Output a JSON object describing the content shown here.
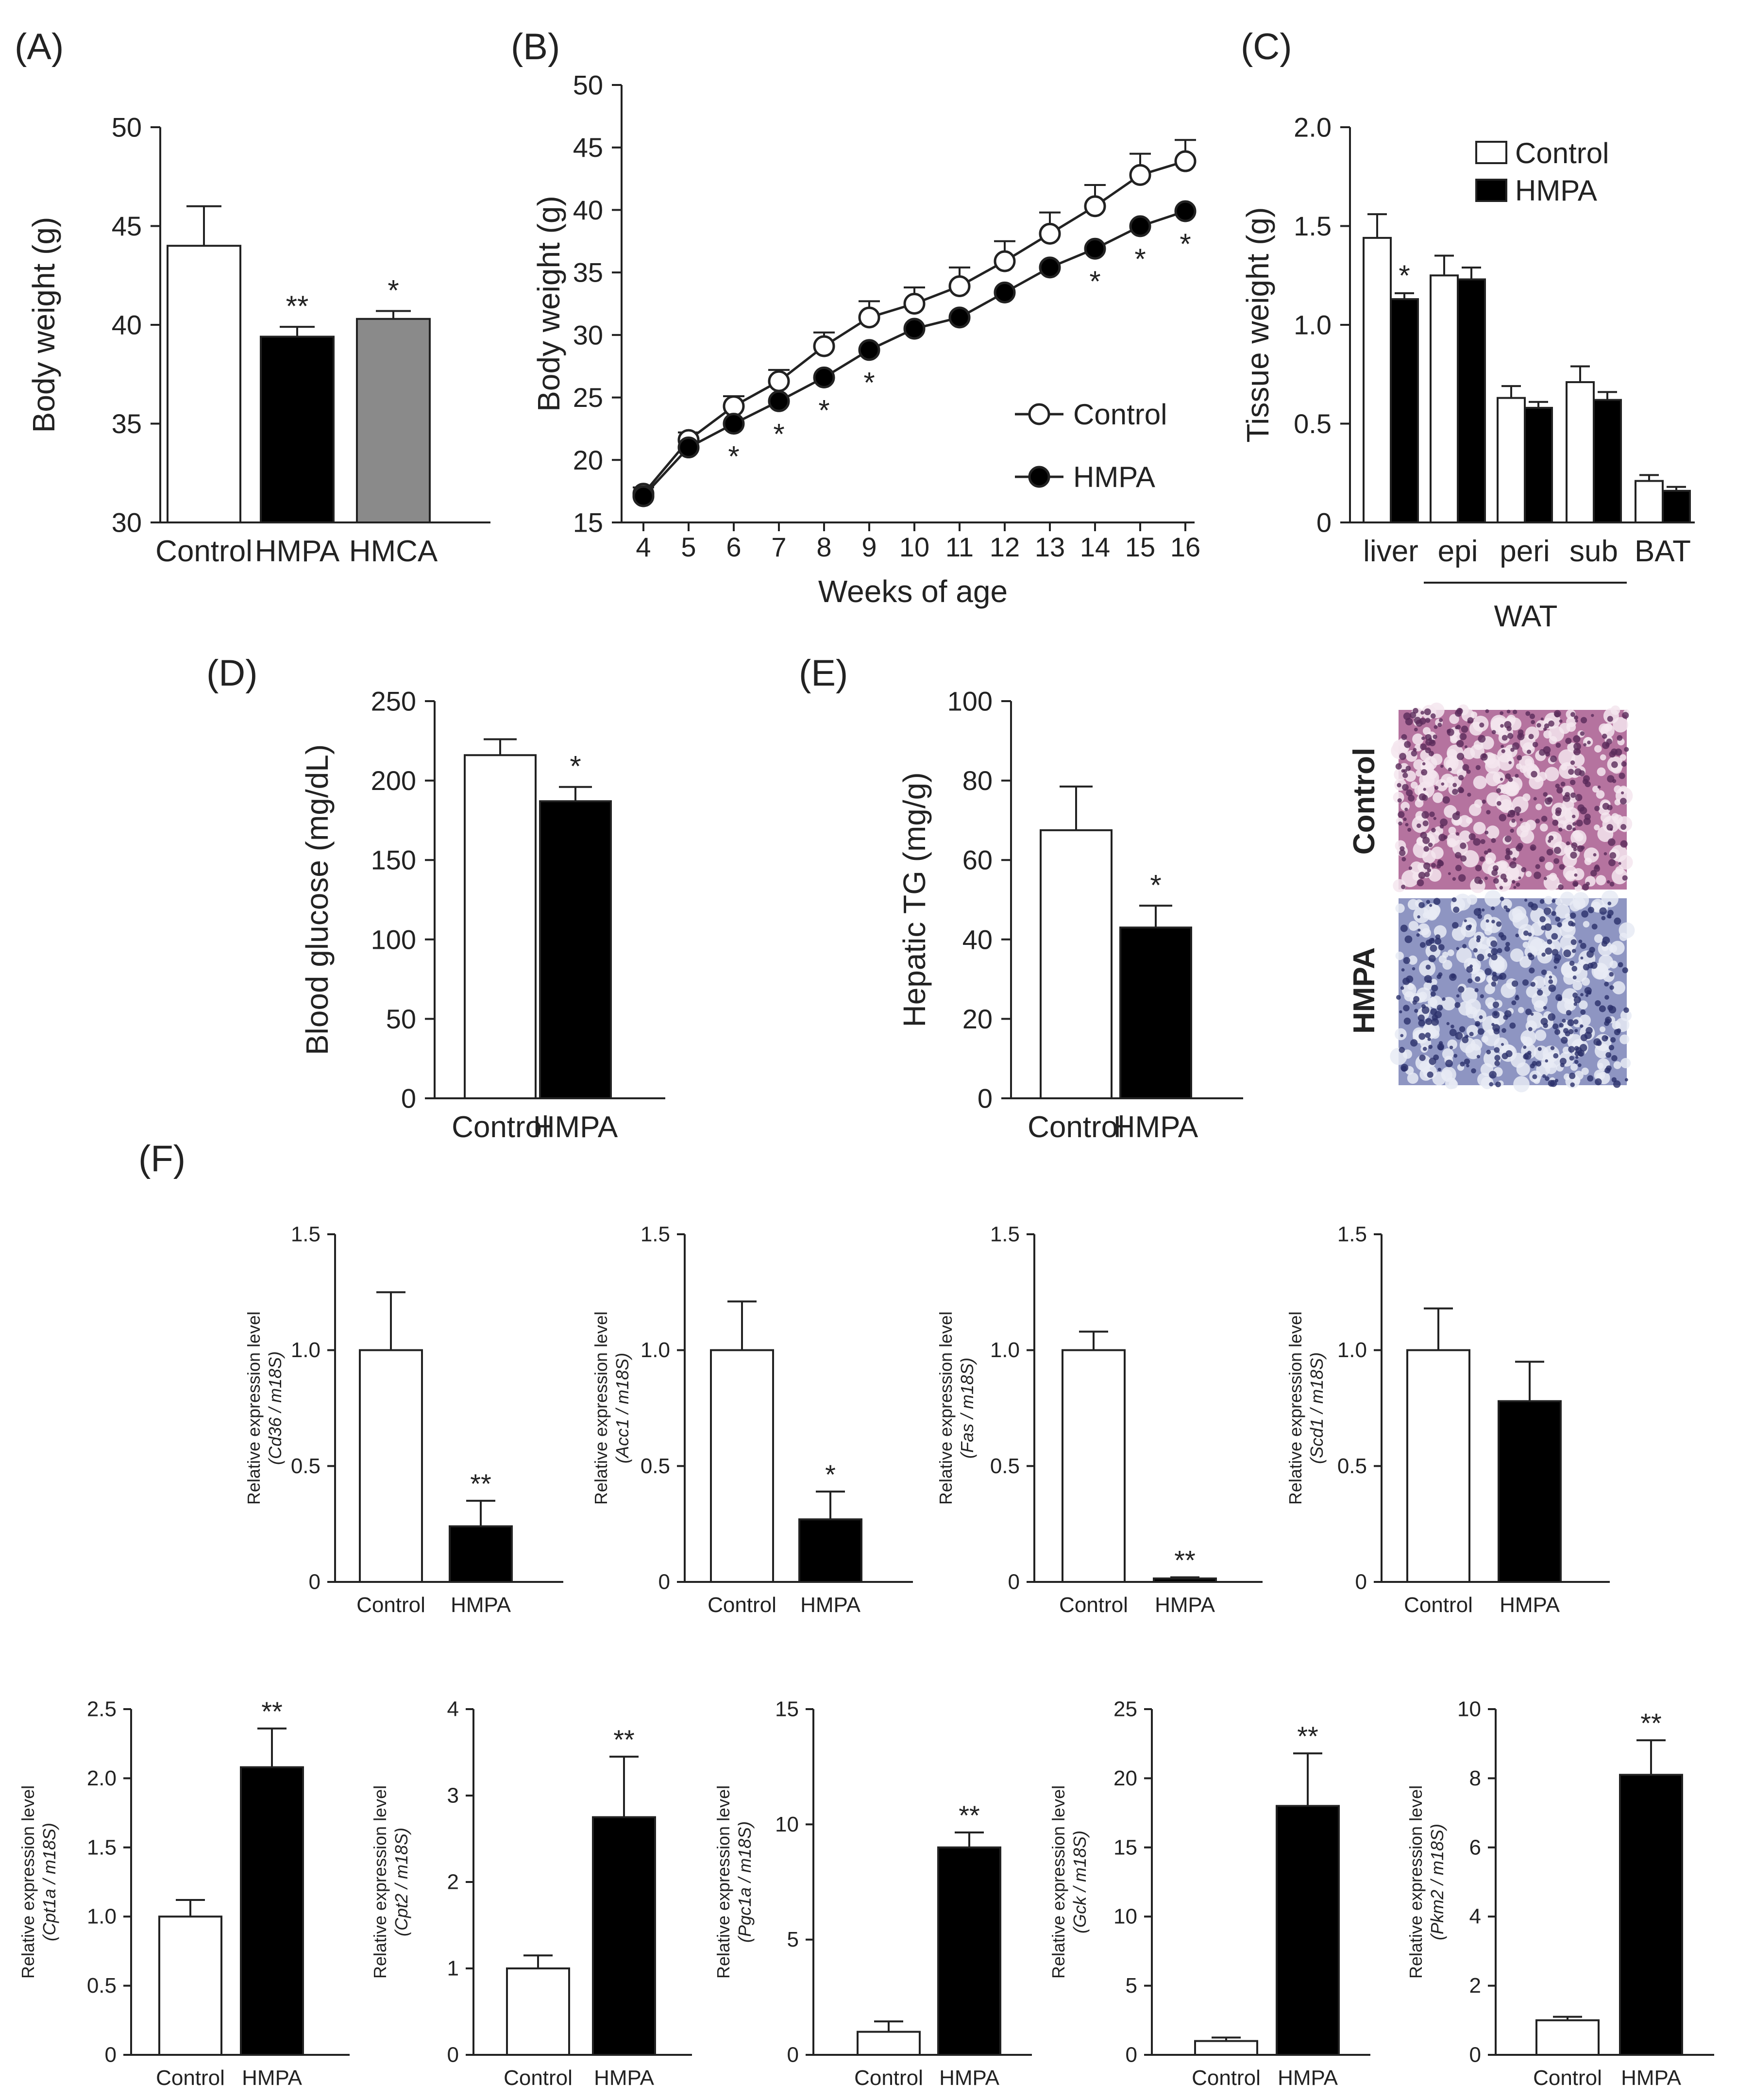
{
  "colors": {
    "control": "#ffffff",
    "hmpa": "#000000",
    "hmca": "#8a8a8a",
    "axis": "#222222",
    "he_pink": "#b5739f",
    "he_blue": "#8e95c2"
  },
  "histology": {
    "labels": [
      "Control",
      "HMPA"
    ],
    "control_icon": "he-stain-control-image",
    "hmpa_icon": "he-stain-hmpa-image"
  },
  "chart_data": [
    {
      "id": "A",
      "type": "bar",
      "panel_label": "(A)",
      "ylabel": "Body weight (g)",
      "ylim": [
        30,
        50
      ],
      "yticks": [
        30,
        35,
        40,
        45,
        50
      ],
      "ytick_labels": [
        "30",
        "35",
        "40",
        "45",
        "50"
      ],
      "categories": [
        "Control",
        "HMPA",
        "HMCA"
      ],
      "values": [
        44,
        39.4,
        40.3
      ],
      "errors": [
        2,
        0.5,
        0.4
      ],
      "colors": [
        "#ffffff",
        "#000000",
        "#8a8a8a"
      ],
      "stars": [
        "",
        "**",
        "*"
      ]
    },
    {
      "id": "B",
      "type": "line",
      "panel_label": "(B)",
      "xlabel": "Weeks of age",
      "ylabel": "Body weight (g)",
      "ylim": [
        15,
        50
      ],
      "yticks": [
        15,
        20,
        25,
        30,
        35,
        40,
        45,
        50
      ],
      "ytick_labels": [
        "15",
        "20",
        "25",
        "30",
        "35",
        "40",
        "45",
        "50"
      ],
      "x": [
        4,
        5,
        6,
        7,
        8,
        9,
        10,
        11,
        12,
        13,
        14,
        15,
        16
      ],
      "x_labels": [
        "4",
        "5",
        "6",
        "7",
        "8",
        "9",
        "10",
        "11",
        "12",
        "13",
        "14",
        "15",
        "16"
      ],
      "series": [
        {
          "name": "Control",
          "marker": "open",
          "values": [
            17.3,
            21.6,
            24.3,
            26.3,
            29.1,
            31.4,
            32.5,
            33.9,
            35.9,
            38.1,
            40.3,
            42.8,
            43.9
          ],
          "errors": [
            0.5,
            0.6,
            0.8,
            0.9,
            1.1,
            1.3,
            1.3,
            1.5,
            1.6,
            1.7,
            1.7,
            1.7,
            1.7
          ]
        },
        {
          "name": "HMPA",
          "marker": "filled",
          "values": [
            17.1,
            21.0,
            22.9,
            24.7,
            26.6,
            28.8,
            30.5,
            31.4,
            33.4,
            35.4,
            36.9,
            38.7,
            39.9
          ],
          "errors": [
            0.3,
            0.3,
            0.3,
            0.3,
            0.3,
            0.3,
            0.3,
            0.3,
            0.3,
            0.3,
            0.3,
            0.3,
            0.3
          ]
        }
      ],
      "star_x": [
        6,
        7,
        8,
        9,
        14,
        15,
        16
      ],
      "star": "*",
      "legend": [
        "Control",
        "HMPA"
      ]
    },
    {
      "id": "C",
      "type": "bar",
      "panel_label": "(C)",
      "ylabel": "Tissue weight (g)",
      "ylim": [
        0,
        2.0
      ],
      "yticks": [
        0,
        0.5,
        1.0,
        1.5,
        2.0
      ],
      "ytick_labels": [
        "0",
        "0.5",
        "1.0",
        "1.5",
        "2.0"
      ],
      "categories": [
        "liver",
        "epi",
        "peri",
        "sub",
        "BAT"
      ],
      "group_label": "WAT",
      "series": [
        {
          "name": "Control",
          "values": [
            1.44,
            1.25,
            0.63,
            0.71,
            0.21
          ],
          "errors": [
            0.12,
            0.1,
            0.06,
            0.08,
            0.03
          ]
        },
        {
          "name": "HMPA",
          "values": [
            1.13,
            1.23,
            0.58,
            0.62,
            0.16
          ],
          "errors": [
            0.03,
            0.06,
            0.03,
            0.04,
            0.02
          ]
        }
      ],
      "stars": [
        "*",
        "",
        "",
        "",
        ""
      ],
      "legend": [
        "Control",
        "HMPA"
      ]
    },
    {
      "id": "D",
      "type": "bar",
      "panel_label": "(D)",
      "ylabel": "Blood glucose (mg/dL)",
      "ylim": [
        0,
        250
      ],
      "yticks": [
        0,
        50,
        100,
        150,
        200,
        250
      ],
      "ytick_labels": [
        "0",
        "50",
        "100",
        "150",
        "200",
        "250"
      ],
      "categories": [
        "Control",
        "HMPA"
      ],
      "values": [
        216,
        187
      ],
      "errors": [
        10,
        9
      ],
      "colors": [
        "#ffffff",
        "#000000"
      ],
      "stars": [
        "",
        "*"
      ]
    },
    {
      "id": "E",
      "type": "bar",
      "panel_label": "(E)",
      "ylabel": "Hepatic TG (mg/g)",
      "ylim": [
        0,
        100
      ],
      "yticks": [
        0,
        20,
        40,
        60,
        80,
        100
      ],
      "ytick_labels": [
        "0",
        "20",
        "40",
        "60",
        "80",
        "100"
      ],
      "categories": [
        "Control",
        "HMPA"
      ],
      "values": [
        67.5,
        43
      ],
      "errors": [
        11,
        5.5
      ],
      "colors": [
        "#ffffff",
        "#000000"
      ],
      "stars": [
        "",
        "*"
      ]
    },
    {
      "id": "F1",
      "type": "bar",
      "panel_label": "(F)",
      "gene": "Cd36",
      "ylabel_line1": "Relative expression level",
      "ylabel_line2": "(Cd36 / m18S)",
      "ylim": [
        0,
        1.5
      ],
      "yticks": [
        0,
        0.5,
        1.0,
        1.5
      ],
      "ytick_labels": [
        "0",
        "0.5",
        "1.0",
        "1.5"
      ],
      "categories": [
        "Control",
        "HMPA"
      ],
      "values": [
        1.0,
        0.24
      ],
      "errors": [
        0.25,
        0.11
      ],
      "stars": [
        "",
        "**"
      ]
    },
    {
      "id": "F2",
      "type": "bar",
      "gene": "Acc1",
      "ylabel_line1": "Relative expression level",
      "ylabel_line2": "(Acc1 / m18S)",
      "ylim": [
        0,
        1.5
      ],
      "yticks": [
        0,
        0.5,
        1.0,
        1.5
      ],
      "ytick_labels": [
        "0",
        "0.5",
        "1.0",
        "1.5"
      ],
      "categories": [
        "Control",
        "HMPA"
      ],
      "values": [
        1.0,
        0.27
      ],
      "errors": [
        0.21,
        0.12
      ],
      "stars": [
        "",
        "*"
      ]
    },
    {
      "id": "F3",
      "type": "bar",
      "gene": "Fas",
      "ylabel_line1": "Relative expression level",
      "ylabel_line2": "(Fas / m18S)",
      "ylim": [
        0,
        1.5
      ],
      "yticks": [
        0,
        0.5,
        1.0,
        1.5
      ],
      "ytick_labels": [
        "0",
        "0.5",
        "1.0",
        "1.5"
      ],
      "categories": [
        "Control",
        "HMPA"
      ],
      "values": [
        1.0,
        0.015
      ],
      "errors": [
        0.08,
        0.005
      ],
      "stars": [
        "",
        "**"
      ]
    },
    {
      "id": "F4",
      "type": "bar",
      "gene": "Scd1",
      "ylabel_line1": "Relative expression level",
      "ylabel_line2": "(Scd1 / m18S)",
      "ylim": [
        0,
        1.5
      ],
      "yticks": [
        0,
        0.5,
        1.0,
        1.5
      ],
      "ytick_labels": [
        "0",
        "0.5",
        "1.0",
        "1.5"
      ],
      "categories": [
        "Control",
        "HMPA"
      ],
      "values": [
        1.0,
        0.78
      ],
      "errors": [
        0.18,
        0.17
      ],
      "stars": [
        "",
        ""
      ]
    },
    {
      "id": "F5",
      "type": "bar",
      "gene": "Cpt1a",
      "ylabel_line1": "Relative expression level",
      "ylabel_line2": "(Cpt1a / m18S)",
      "ylim": [
        0,
        2.5
      ],
      "yticks": [
        0,
        0.5,
        1.0,
        1.5,
        2.0,
        2.5
      ],
      "ytick_labels": [
        "0",
        "0.5",
        "1.0",
        "1.5",
        "2.0",
        "2.5"
      ],
      "categories": [
        "Control",
        "HMPA"
      ],
      "values": [
        1.0,
        2.08
      ],
      "errors": [
        0.12,
        0.28
      ],
      "stars": [
        "",
        "**"
      ]
    },
    {
      "id": "F6",
      "type": "bar",
      "gene": "Cpt2",
      "ylabel_line1": "Relative expression level",
      "ylabel_line2": "(Cpt2 / m18S)",
      "ylim": [
        0,
        4
      ],
      "yticks": [
        0,
        1,
        2,
        3,
        4
      ],
      "ytick_labels": [
        "0",
        "1",
        "2",
        "3",
        "4"
      ],
      "categories": [
        "Control",
        "HMPA"
      ],
      "values": [
        1.0,
        2.75
      ],
      "errors": [
        0.15,
        0.7
      ],
      "stars": [
        "",
        "**"
      ]
    },
    {
      "id": "F7",
      "type": "bar",
      "gene": "Pgc1a",
      "ylabel_line1": "Relative expression level",
      "ylabel_line2": "(Pgc1a / m18S)",
      "ylim": [
        0,
        15
      ],
      "yticks": [
        0,
        5,
        10,
        15
      ],
      "ytick_labels": [
        "0",
        "5",
        "10",
        "15"
      ],
      "categories": [
        "Control",
        "HMPA"
      ],
      "values": [
        1.0,
        9.0
      ],
      "errors": [
        0.45,
        0.65
      ],
      "stars": [
        "",
        "**"
      ]
    },
    {
      "id": "F8",
      "type": "bar",
      "gene": "Gck",
      "ylabel_line1": "Relative expression level",
      "ylabel_line2": "(Gck / m18S)",
      "ylim": [
        0,
        25
      ],
      "yticks": [
        0,
        5,
        10,
        15,
        20,
        25
      ],
      "ytick_labels": [
        "0",
        "5",
        "10",
        "15",
        "20",
        "25"
      ],
      "categories": [
        "Control",
        "HMPA"
      ],
      "values": [
        1.0,
        18.0
      ],
      "errors": [
        0.25,
        3.8
      ],
      "stars": [
        "",
        "**"
      ]
    },
    {
      "id": "F9",
      "type": "bar",
      "gene": "Pkm2",
      "ylabel_line1": "Relative expression level",
      "ylabel_line2": "(Pkm2 / m18S)",
      "ylim": [
        0,
        10
      ],
      "yticks": [
        0,
        2,
        4,
        6,
        8,
        10
      ],
      "ytick_labels": [
        "0",
        "2",
        "4",
        "6",
        "8",
        "10"
      ],
      "categories": [
        "Control",
        "HMPA"
      ],
      "values": [
        1.0,
        8.1
      ],
      "errors": [
        0.1,
        1.0
      ],
      "stars": [
        "",
        "**"
      ]
    }
  ]
}
